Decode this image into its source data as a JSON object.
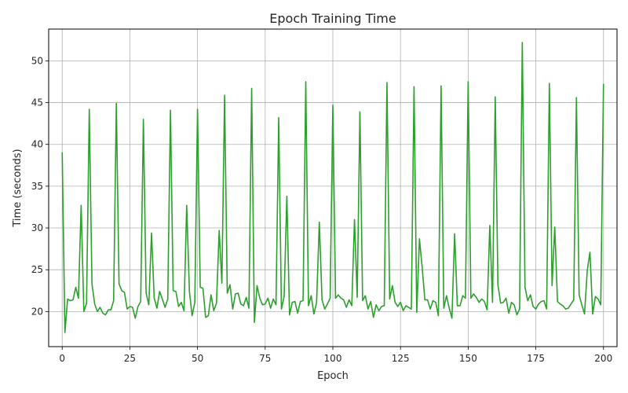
{
  "chart_data": {
    "type": "line",
    "title": "Epoch Training Time",
    "xlabel": "Epoch",
    "ylabel": "Time (seconds)",
    "xlim": [
      -5,
      205
    ],
    "ylim": [
      15.8,
      53.8
    ],
    "xticks": [
      0,
      25,
      50,
      75,
      100,
      125,
      150,
      175,
      200
    ],
    "yticks": [
      20,
      25,
      30,
      35,
      40,
      45,
      50
    ],
    "grid": true,
    "line_color": "#2ca02c",
    "series": [
      {
        "x": [
          0,
          1,
          2,
          3,
          4,
          5,
          6,
          7,
          8,
          9,
          10,
          11,
          12,
          13,
          14,
          15,
          16,
          17,
          18,
          19,
          20,
          21,
          22,
          23,
          24,
          25,
          26,
          27,
          28,
          29,
          30,
          31,
          32,
          33,
          34,
          35,
          36,
          37,
          38,
          39,
          40,
          41,
          42,
          43,
          44,
          45,
          46,
          47,
          48,
          49,
          50,
          51,
          52,
          53,
          54,
          55,
          56,
          57,
          58,
          59,
          60,
          61,
          62,
          63,
          64,
          65,
          66,
          67,
          68,
          69,
          70,
          71,
          72,
          73,
          74,
          75,
          76,
          77,
          78,
          79,
          80,
          81,
          82,
          83,
          84,
          85,
          86,
          87,
          88,
          89,
          90,
          91,
          92,
          93,
          94,
          95,
          96,
          97,
          98,
          99,
          100,
          101,
          102,
          103,
          104,
          105,
          106,
          107,
          108,
          109,
          110,
          111,
          112,
          113,
          114,
          115,
          116,
          117,
          118,
          119,
          120,
          121,
          122,
          123,
          124,
          125,
          126,
          127,
          128,
          129,
          130,
          131,
          132,
          133,
          134,
          135,
          136,
          137,
          138,
          139,
          140,
          141,
          142,
          143,
          144,
          145,
          146,
          147,
          148,
          149,
          150,
          151,
          152,
          153,
          154,
          155,
          156,
          157,
          158,
          159,
          160,
          161,
          162,
          163,
          164,
          165,
          166,
          167,
          168,
          169,
          170,
          171,
          172,
          173,
          174,
          175,
          176,
          177,
          178,
          179,
          180,
          181,
          182,
          183,
          184,
          185,
          186,
          187,
          188,
          189,
          190,
          191,
          192,
          193,
          194,
          195,
          196,
          197,
          198,
          199,
          200
        ],
        "y": [
          39.0,
          17.5,
          21.5,
          21.3,
          21.4,
          22.9,
          21.6,
          32.7,
          20.0,
          21.0,
          44.2,
          23.3,
          20.9,
          20.0,
          20.5,
          19.8,
          19.6,
          20.2,
          20.2,
          21.3,
          44.9,
          23.3,
          22.5,
          22.3,
          20.3,
          20.6,
          20.5,
          19.2,
          20.6,
          21.2,
          43.0,
          22.2,
          20.8,
          29.4,
          21.6,
          20.4,
          22.4,
          21.5,
          20.5,
          21.5,
          44.1,
          22.5,
          22.4,
          20.6,
          21.1,
          20.1,
          32.7,
          22.4,
          19.5,
          21.1,
          44.2,
          22.9,
          22.8,
          19.3,
          19.5,
          22.0,
          20.1,
          21.0,
          29.7,
          23.4,
          45.9,
          22.2,
          23.2,
          20.3,
          22.1,
          22.2,
          20.9,
          20.7,
          21.7,
          20.4,
          46.7,
          18.7,
          23.1,
          21.6,
          20.8,
          20.9,
          21.6,
          20.4,
          21.5,
          20.8,
          43.2,
          20.3,
          21.8,
          33.8,
          19.6,
          21.1,
          21.2,
          19.8,
          21.2,
          21.3,
          47.5,
          20.7,
          21.9,
          19.7,
          21.1,
          30.7,
          21.4,
          20.3,
          20.9,
          21.6,
          44.7,
          21.6,
          22.0,
          21.6,
          21.4,
          20.5,
          21.4,
          20.7,
          31.0,
          21.7,
          43.9,
          21.3,
          21.9,
          20.3,
          21.2,
          19.3,
          20.8,
          20.1,
          20.6,
          20.7,
          47.4,
          21.5,
          23.1,
          21.1,
          20.6,
          21.1,
          20.1,
          20.7,
          20.5,
          20.3,
          46.9,
          19.9,
          28.7,
          25.3,
          21.4,
          21.4,
          20.3,
          21.3,
          21.1,
          19.5,
          47.0,
          20.4,
          21.9,
          20.4,
          19.2,
          29.3,
          20.7,
          20.7,
          21.9,
          21.6,
          47.5,
          21.6,
          22.1,
          21.7,
          21.1,
          21.5,
          21.2,
          20.2,
          30.3,
          21.1,
          45.7,
          23.2,
          21.0,
          21.1,
          21.6,
          19.8,
          21.1,
          20.8,
          19.6,
          20.3,
          52.2,
          22.9,
          21.3,
          22.0,
          20.6,
          20.3,
          20.9,
          21.2,
          21.3,
          20.3,
          47.3,
          23.1,
          30.1,
          21.2,
          20.9,
          20.7,
          20.3,
          20.4,
          20.9,
          21.4,
          45.6,
          22.0,
          20.8,
          19.7,
          24.9,
          27.1,
          19.7,
          21.8,
          21.5,
          20.8,
          47.2
        ]
      }
    ]
  }
}
